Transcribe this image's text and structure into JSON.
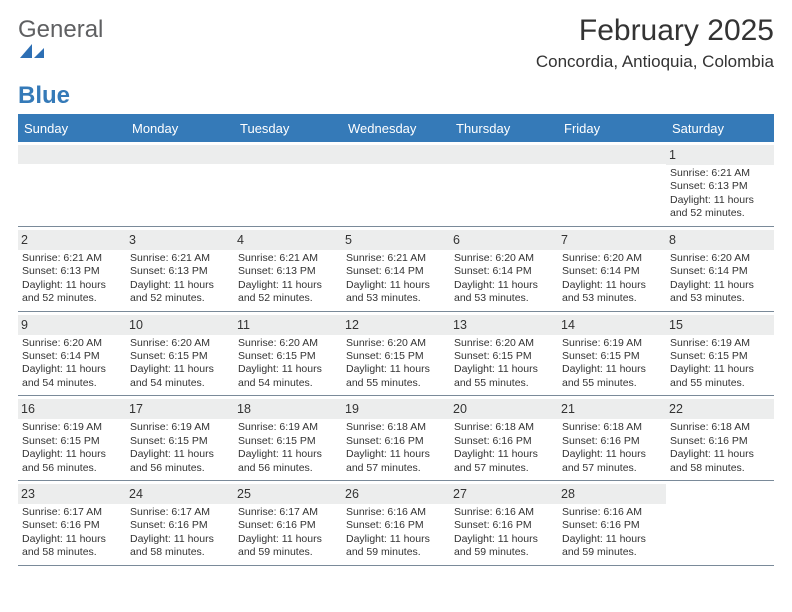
{
  "logo": {
    "word1": "General",
    "word2": "Blue",
    "shape_color": "#2d6fb4"
  },
  "title": "February 2025",
  "location": "Concordia, Antioquia, Colombia",
  "colors": {
    "header_bg": "#357ab8",
    "header_text": "#ffffff",
    "divider": "#357ab8",
    "daynum_bg": "#eceded",
    "row_border": "#7a8a99",
    "body_text": "#333333"
  },
  "weekdays": [
    "Sunday",
    "Monday",
    "Tuesday",
    "Wednesday",
    "Thursday",
    "Friday",
    "Saturday"
  ],
  "weeks": [
    [
      {
        "blank": true
      },
      {
        "blank": true
      },
      {
        "blank": true
      },
      {
        "blank": true
      },
      {
        "blank": true
      },
      {
        "blank": true
      },
      {
        "day": "1",
        "sunrise": "6:21 AM",
        "sunset": "6:13 PM",
        "daylight": "11 hours and 52 minutes."
      }
    ],
    [
      {
        "day": "2",
        "sunrise": "6:21 AM",
        "sunset": "6:13 PM",
        "daylight": "11 hours and 52 minutes."
      },
      {
        "day": "3",
        "sunrise": "6:21 AM",
        "sunset": "6:13 PM",
        "daylight": "11 hours and 52 minutes."
      },
      {
        "day": "4",
        "sunrise": "6:21 AM",
        "sunset": "6:13 PM",
        "daylight": "11 hours and 52 minutes."
      },
      {
        "day": "5",
        "sunrise": "6:21 AM",
        "sunset": "6:14 PM",
        "daylight": "11 hours and 53 minutes."
      },
      {
        "day": "6",
        "sunrise": "6:20 AM",
        "sunset": "6:14 PM",
        "daylight": "11 hours and 53 minutes."
      },
      {
        "day": "7",
        "sunrise": "6:20 AM",
        "sunset": "6:14 PM",
        "daylight": "11 hours and 53 minutes."
      },
      {
        "day": "8",
        "sunrise": "6:20 AM",
        "sunset": "6:14 PM",
        "daylight": "11 hours and 53 minutes."
      }
    ],
    [
      {
        "day": "9",
        "sunrise": "6:20 AM",
        "sunset": "6:14 PM",
        "daylight": "11 hours and 54 minutes."
      },
      {
        "day": "10",
        "sunrise": "6:20 AM",
        "sunset": "6:15 PM",
        "daylight": "11 hours and 54 minutes."
      },
      {
        "day": "11",
        "sunrise": "6:20 AM",
        "sunset": "6:15 PM",
        "daylight": "11 hours and 54 minutes."
      },
      {
        "day": "12",
        "sunrise": "6:20 AM",
        "sunset": "6:15 PM",
        "daylight": "11 hours and 55 minutes."
      },
      {
        "day": "13",
        "sunrise": "6:20 AM",
        "sunset": "6:15 PM",
        "daylight": "11 hours and 55 minutes."
      },
      {
        "day": "14",
        "sunrise": "6:19 AM",
        "sunset": "6:15 PM",
        "daylight": "11 hours and 55 minutes."
      },
      {
        "day": "15",
        "sunrise": "6:19 AM",
        "sunset": "6:15 PM",
        "daylight": "11 hours and 55 minutes."
      }
    ],
    [
      {
        "day": "16",
        "sunrise": "6:19 AM",
        "sunset": "6:15 PM",
        "daylight": "11 hours and 56 minutes."
      },
      {
        "day": "17",
        "sunrise": "6:19 AM",
        "sunset": "6:15 PM",
        "daylight": "11 hours and 56 minutes."
      },
      {
        "day": "18",
        "sunrise": "6:19 AM",
        "sunset": "6:15 PM",
        "daylight": "11 hours and 56 minutes."
      },
      {
        "day": "19",
        "sunrise": "6:18 AM",
        "sunset": "6:16 PM",
        "daylight": "11 hours and 57 minutes."
      },
      {
        "day": "20",
        "sunrise": "6:18 AM",
        "sunset": "6:16 PM",
        "daylight": "11 hours and 57 minutes."
      },
      {
        "day": "21",
        "sunrise": "6:18 AM",
        "sunset": "6:16 PM",
        "daylight": "11 hours and 57 minutes."
      },
      {
        "day": "22",
        "sunrise": "6:18 AM",
        "sunset": "6:16 PM",
        "daylight": "11 hours and 58 minutes."
      }
    ],
    [
      {
        "day": "23",
        "sunrise": "6:17 AM",
        "sunset": "6:16 PM",
        "daylight": "11 hours and 58 minutes."
      },
      {
        "day": "24",
        "sunrise": "6:17 AM",
        "sunset": "6:16 PM",
        "daylight": "11 hours and 58 minutes."
      },
      {
        "day": "25",
        "sunrise": "6:17 AM",
        "sunset": "6:16 PM",
        "daylight": "11 hours and 59 minutes."
      },
      {
        "day": "26",
        "sunrise": "6:16 AM",
        "sunset": "6:16 PM",
        "daylight": "11 hours and 59 minutes."
      },
      {
        "day": "27",
        "sunrise": "6:16 AM",
        "sunset": "6:16 PM",
        "daylight": "11 hours and 59 minutes."
      },
      {
        "day": "28",
        "sunrise": "6:16 AM",
        "sunset": "6:16 PM",
        "daylight": "11 hours and 59 minutes."
      },
      {
        "blank": true,
        "noshade": true
      }
    ]
  ],
  "labels": {
    "sunrise_prefix": "Sunrise: ",
    "sunset_prefix": "Sunset: ",
    "daylight_prefix": "Daylight: "
  }
}
